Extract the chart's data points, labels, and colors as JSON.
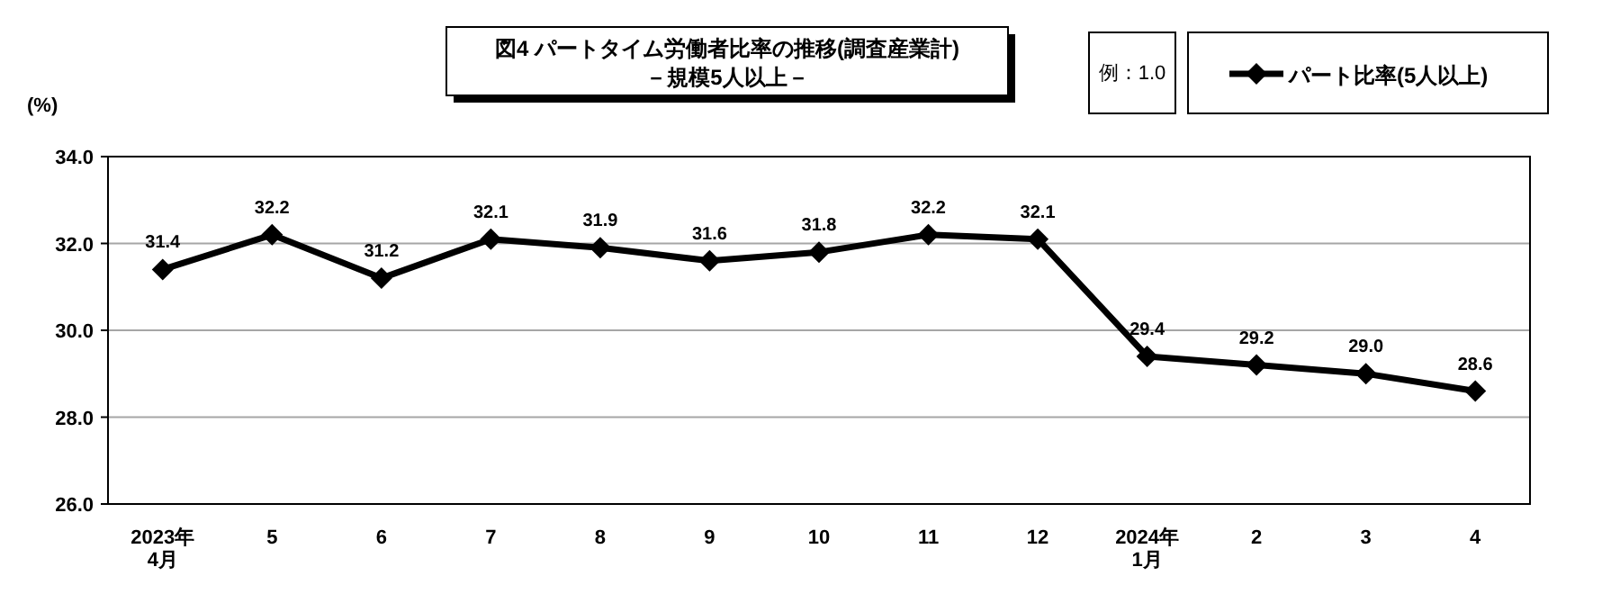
{
  "chart_data": {
    "type": "line",
    "title": "図4  パートタイム労働者比率の推移(調査産業計)",
    "subtitle": "－規模5人以上－",
    "ylabel": "(%)",
    "annotations": [
      "例：1.0"
    ],
    "categories": [
      "2023年\n4月",
      "5",
      "6",
      "7",
      "8",
      "9",
      "10",
      "11",
      "12",
      "2024年\n1月",
      "2",
      "3",
      "4"
    ],
    "series": [
      {
        "name": "パート比率(5人以上)",
        "color": "#000000",
        "values": [
          31.4,
          32.2,
          31.2,
          32.1,
          31.9,
          31.6,
          31.8,
          32.2,
          32.1,
          29.4,
          29.2,
          29.0,
          28.6
        ],
        "value_labels": [
          "31.4",
          "32.2",
          "31.2",
          "32.1",
          "31.9",
          "31.6",
          "31.8",
          "32.2",
          "32.1",
          "29.4",
          "29.2",
          "29.0",
          "28.6"
        ]
      }
    ],
    "ylim": [
      26,
      34
    ],
    "yticks": [
      {
        "value": 26,
        "label": "26.0"
      },
      {
        "value": 28,
        "label": "28.0"
      },
      {
        "value": 30,
        "label": "30.0"
      },
      {
        "value": 32,
        "label": "32.0"
      },
      {
        "value": 34,
        "label": "34.0"
      }
    ],
    "grid": "y",
    "legend": "top right",
    "marker": "diamond",
    "line_style": "solid"
  }
}
